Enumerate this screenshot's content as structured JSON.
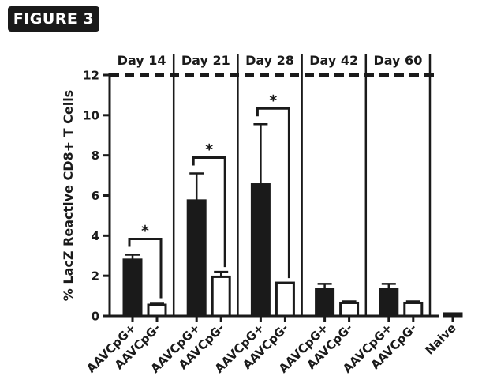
{
  "figure_label": "FIGURE 3",
  "chart_data": {
    "type": "bar",
    "title": "",
    "xlabel": "",
    "ylabel": "% LacZ Reactive CD8+ T Cells",
    "ylim": [
      0,
      12
    ],
    "yticks": [
      0,
      2,
      4,
      6,
      8,
      10,
      12
    ],
    "reference_line": 12,
    "colors": {
      "filled": "#1a1a1a",
      "open": "#ffffff",
      "stroke": "#1a1a1a"
    },
    "groups": [
      {
        "label": "Day 14",
        "significance": "*",
        "bars": [
          {
            "category": "AAVCpG+",
            "value": 2.8,
            "error": 0.25,
            "fill": "filled"
          },
          {
            "category": "AAVCpG-",
            "value": 0.55,
            "error": 0.1,
            "fill": "open"
          }
        ]
      },
      {
        "label": "Day 21",
        "significance": "*",
        "bars": [
          {
            "category": "AAVCpG+",
            "value": 5.75,
            "error": 1.35,
            "fill": "filled"
          },
          {
            "category": "AAVCpG-",
            "value": 1.95,
            "error": 0.25,
            "fill": "open"
          }
        ]
      },
      {
        "label": "Day 28",
        "significance": "*",
        "bars": [
          {
            "category": "AAVCpG+",
            "value": 6.55,
            "error": 3.0,
            "fill": "filled"
          },
          {
            "category": "AAVCpG-",
            "value": 1.65,
            "error": 0.0,
            "fill": "open"
          }
        ]
      },
      {
        "label": "Day 42",
        "significance": "",
        "bars": [
          {
            "category": "AAVCpG+",
            "value": 1.35,
            "error": 0.25,
            "fill": "filled"
          },
          {
            "category": "AAVCpG-",
            "value": 0.65,
            "error": 0.08,
            "fill": "open"
          }
        ]
      },
      {
        "label": "Day 60",
        "significance": "",
        "bars": [
          {
            "category": "AAVCpG+",
            "value": 1.35,
            "error": 0.25,
            "fill": "filled"
          },
          {
            "category": "AAVCpG-",
            "value": 0.65,
            "error": 0.08,
            "fill": "open"
          }
        ]
      },
      {
        "label": "",
        "significance": "",
        "bars": [
          {
            "category": "Naive",
            "value": 0.12,
            "error": 0.0,
            "fill": "filled"
          }
        ]
      }
    ]
  }
}
